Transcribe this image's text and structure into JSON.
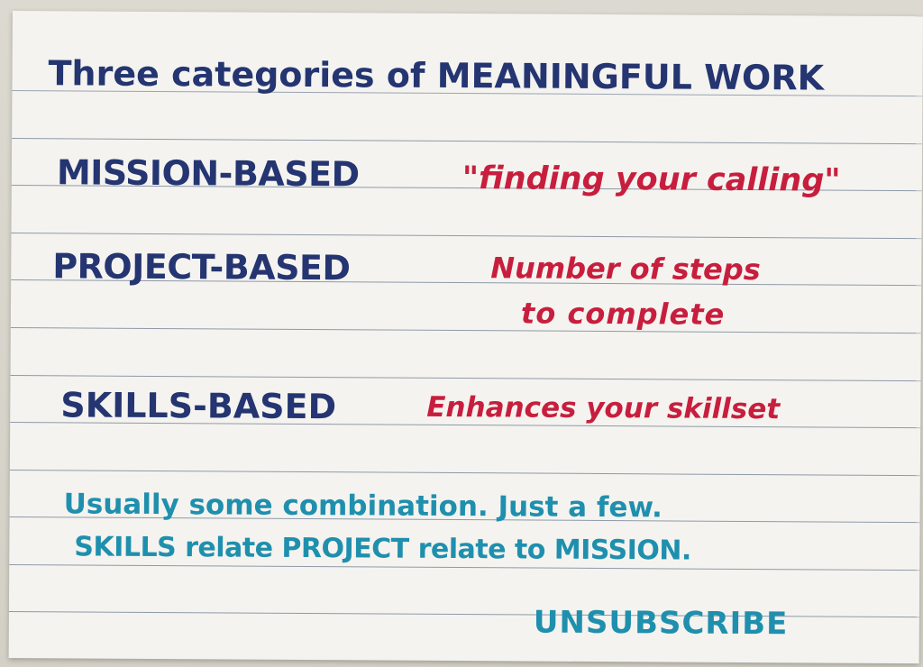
{
  "card": {
    "title": "Three categories of MEANINGFUL WORK",
    "categories": [
      {
        "name": "MISSION-BASED",
        "description": "\"finding your calling\""
      },
      {
        "name": "PROJECT-BASED",
        "description_line1": "Number of steps",
        "description_line2": "to complete"
      },
      {
        "name": "SKILLS-BASED",
        "description": "Enhances your skillset"
      }
    ],
    "note_line1": "Usually some combination. Just a few.",
    "note_line2": "SKILLS relate PROJECT relate to MISSION.",
    "footer": "UNSUBSCRIBE"
  },
  "colors": {
    "card": "#f4f3ef",
    "rule_lines": "#8f9aa8",
    "navy_ink": "#243571",
    "red_ink": "#c81e3e",
    "teal_ink": "#1f8fae"
  }
}
